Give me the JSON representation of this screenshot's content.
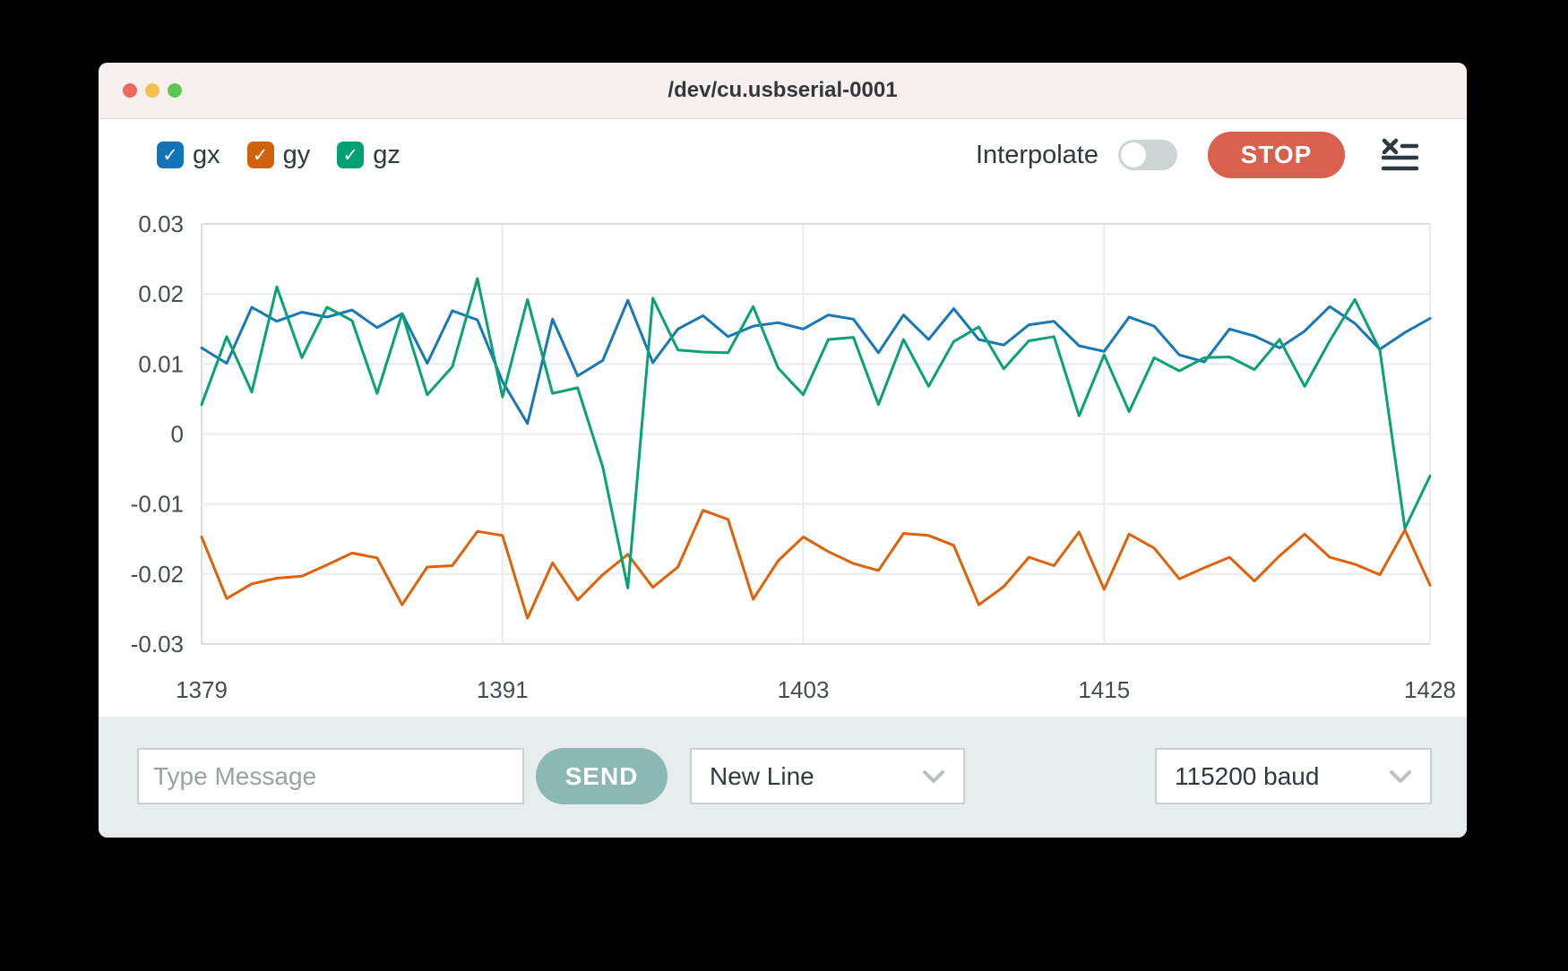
{
  "window": {
    "title": "/dev/cu.usbserial-0001"
  },
  "legend": {
    "items": [
      {
        "label": "gx",
        "color": "#1273b6",
        "checked": true
      },
      {
        "label": "gy",
        "color": "#d2610c",
        "checked": true
      },
      {
        "label": "gz",
        "color": "#00a273",
        "checked": true
      }
    ],
    "check_glyph": "✓"
  },
  "toolbar": {
    "interpolate_label": "Interpolate",
    "interpolate_on": false,
    "stop_label": "STOP"
  },
  "composer": {
    "message_placeholder": "Type Message",
    "send_label": "SEND",
    "line_ending_value": "New Line",
    "baud_rate_value": "115200 baud"
  },
  "colors": {
    "titlebar_bg": "#f7f0ef",
    "bottombar_bg": "#e7edec",
    "stop_button": "#d9604e",
    "send_button": "#8cb8b4",
    "grid_line": "#e9eced",
    "axis_line": "#d9dddd",
    "axis_text": "#454d52"
  },
  "chart_data": {
    "type": "line",
    "title": "",
    "xlabel": "",
    "ylabel": "",
    "grid": true,
    "legend_position": "top-left-checkboxes",
    "ylim": [
      -0.03,
      0.03
    ],
    "yticks": [
      0.03,
      0.02,
      0.01,
      0,
      -0.01,
      -0.02,
      -0.03
    ],
    "ytick_labels": [
      "0.03",
      "0.02",
      "0.01",
      "0",
      "-0.01",
      "-0.02",
      "-0.03"
    ],
    "xticks": [
      1379,
      1391,
      1403,
      1415,
      1428
    ],
    "x": [
      1379,
      1380,
      1381,
      1382,
      1383,
      1384,
      1385,
      1386,
      1387,
      1388,
      1389,
      1390,
      1391,
      1392,
      1393,
      1394,
      1395,
      1396,
      1397,
      1398,
      1399,
      1400,
      1401,
      1402,
      1403,
      1404,
      1405,
      1406,
      1407,
      1408,
      1409,
      1410,
      1411,
      1412,
      1413,
      1414,
      1415,
      1416,
      1417,
      1418,
      1419,
      1420,
      1421,
      1422,
      1423,
      1424,
      1425,
      1426,
      1427,
      1428
    ],
    "series": [
      {
        "name": "gx",
        "color": "#1878b6",
        "values": [
          0.0123,
          0.0101,
          0.0181,
          0.0161,
          0.0174,
          0.0167,
          0.0177,
          0.0152,
          0.0172,
          0.0101,
          0.0176,
          0.0163,
          0.0075,
          0.0015,
          0.0164,
          0.0083,
          0.0105,
          0.0191,
          0.0102,
          0.015,
          0.0169,
          0.0139,
          0.0154,
          0.0159,
          0.015,
          0.017,
          0.0164,
          0.0116,
          0.017,
          0.0135,
          0.0179,
          0.0135,
          0.0127,
          0.0156,
          0.0161,
          0.0126,
          0.0118,
          0.0167,
          0.0154,
          0.0113,
          0.0103,
          0.015,
          0.014,
          0.0123,
          0.0147,
          0.0182,
          0.0158,
          0.0121,
          0.0145,
          0.0165
        ]
      },
      {
        "name": "gy",
        "color": "#dd620a",
        "values": [
          -0.0147,
          -0.0235,
          -0.0214,
          -0.0206,
          -0.0203,
          -0.0187,
          -0.017,
          -0.0177,
          -0.0244,
          -0.019,
          -0.0188,
          -0.0139,
          -0.0145,
          -0.0263,
          -0.0184,
          -0.0237,
          -0.0201,
          -0.0172,
          -0.0219,
          -0.019,
          -0.0109,
          -0.0122,
          -0.0236,
          -0.0181,
          -0.0147,
          -0.0168,
          -0.0185,
          -0.0195,
          -0.0142,
          -0.0145,
          -0.0159,
          -0.0244,
          -0.0218,
          -0.0176,
          -0.0188,
          -0.014,
          -0.0222,
          -0.0143,
          -0.0163,
          -0.0207,
          -0.0191,
          -0.0176,
          -0.021,
          -0.0174,
          -0.0143,
          -0.0176,
          -0.0186,
          -0.0201,
          -0.0137,
          -0.0216
        ]
      },
      {
        "name": "gz",
        "color": "#09a275",
        "values": [
          0.0042,
          0.0139,
          0.006,
          0.021,
          0.0109,
          0.0181,
          0.0162,
          0.0058,
          0.0172,
          0.0056,
          0.0096,
          0.0222,
          0.0053,
          0.0192,
          0.0058,
          0.0066,
          -0.0047,
          -0.022,
          0.0194,
          0.012,
          0.0117,
          0.0116,
          0.0182,
          0.0094,
          0.0056,
          0.0135,
          0.0138,
          0.0042,
          0.0135,
          0.0068,
          0.0132,
          0.0153,
          0.0093,
          0.0133,
          0.0139,
          0.0026,
          0.0113,
          0.0032,
          0.0109,
          0.009,
          0.0109,
          0.011,
          0.0092,
          0.0135,
          0.0068,
          0.0133,
          0.0192,
          0.012,
          -0.0135,
          -0.006
        ]
      }
    ]
  }
}
